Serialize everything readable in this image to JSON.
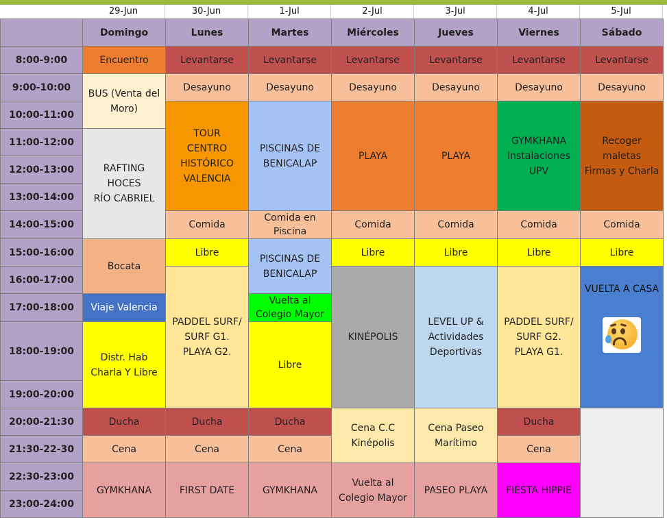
{
  "dates": [
    "29-Jun",
    "30-Jun",
    "1-Jul",
    "2-Jul",
    "3-Jul",
    "4-Jul",
    "5-Jul"
  ],
  "days": [
    "Domingo",
    "Lunes",
    "Martes",
    "Miércoles",
    "Jueves",
    "Viernes",
    "Sábado"
  ],
  "times": [
    "8:00-9:00",
    "9:00-10:00",
    "10:00-11:00",
    "11:00-12:00",
    "12:00-13:00",
    "13:00-14:00",
    "14:00-15:00",
    "15:00-16:00",
    "16:00-17:00",
    "17:00-18:00",
    "18:00-19:00",
    "19:00-20:00",
    "20:00-21:30",
    "21:30-22-30",
    "22:30-23:00",
    "23:00-24:00"
  ],
  "cells": {
    "dom_encuentro": "Encuentro",
    "dom_bus": "BUS (Venta del\nMoro)",
    "dom_rafting": "RAFTING\nHOCES\nRÍO CABRIEL",
    "dom_bocata": "Bocata",
    "dom_viaje": "Viaje Valencia",
    "dom_distr": "Distr. Hab\nCharla Y Libre",
    "dom_ducha": "Ducha",
    "dom_cena": "Cena",
    "dom_gymkhana": "GYMKHANA",
    "lun_levantarse": "Levantarse",
    "lun_desayuno": "Desayuno",
    "lun_tour": "TOUR\nCENTRO\nHISTÓRICO\nVALENCIA",
    "lun_comida": "Comida",
    "lun_libre": "Libre",
    "lun_paddel": "PADDEL SURF/\nSURF  G1.\nPLAYA G2.",
    "lun_ducha": "Ducha",
    "lun_cena": "Cena",
    "lun_first": "FIRST DATE",
    "mar_levantarse": "Levantarse",
    "mar_desayuno": "Desayuno",
    "mar_piscinas1": "PISCINAS DE\nBENICALAP",
    "mar_comida": "Comida en\nPiscina",
    "mar_piscinas2": "PISCINAS DE\nBENICALAP",
    "mar_vuelta": "Vuelta al\nColegio Mayor",
    "mar_libre": "Libre",
    "mar_ducha": "Ducha",
    "mar_cena": "Cena",
    "mar_gymkhana": "GYMKHANA",
    "mie_levantarse": "Levantarse",
    "mie_desayuno": "Desayuno",
    "mie_playa": "PLAYA",
    "mie_comida": "Comida",
    "mie_libre": "Libre",
    "mie_kinepolis": "KINÉPOLIS",
    "mie_cena": "Cena C.C\nKinépolis",
    "mie_vuelta": "Vuelta al\nColegio Mayor",
    "jue_levantarse": "Levantarse",
    "jue_desayuno": "Desayuno",
    "jue_playa": "PLAYA",
    "jue_comida": "Comida",
    "jue_libre": "Libre",
    "jue_level": "LEVEL UP &\nActividades\nDeportivas",
    "jue_cena": "Cena Paseo\nMarítimo",
    "jue_paseo": "PASEO PLAYA",
    "vie_levantarse": "Levantarse",
    "vie_desayuno": "Desayuno",
    "vie_gymkhana": "GYMKHANA\nInstalaciones\nUPV",
    "vie_comida": "Comida",
    "vie_libre": "Libre",
    "vie_paddel": "PADDEL SURF/\nSURF  G2.\nPLAYA G1.",
    "vie_ducha": "Ducha",
    "vie_cena": "Cena",
    "vie_fiesta": "FIESTA HIPPIE",
    "sab_levantarse": "Levantarse",
    "sab_desayuno": "Desayuno",
    "sab_recoger": "Recoger maletas\nFirmas y Charla",
    "sab_comida": "Comida",
    "sab_libre": "Libre",
    "sab_vuelta": "VUELTA A CASA"
  },
  "icons": {
    "sad_face": "anxious-face-with-sweat-icon"
  },
  "colors": {
    "header": "#b2a2c7",
    "encuentro": "#ed7d31",
    "levantarse": "#c0504d",
    "desayuno": "#f8c09a",
    "libre": "#ffff00",
    "gymkhana_upv": "#00b050",
    "fiesta_hippie": "#ff00ff",
    "vuelta_casa": "#4a7fcf"
  }
}
